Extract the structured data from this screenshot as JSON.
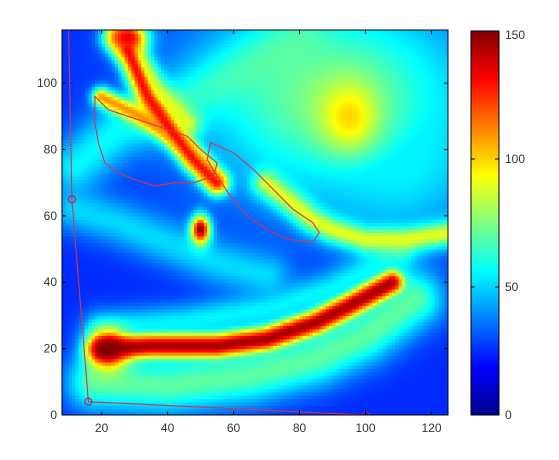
{
  "chart_data": {
    "type": "heatmap",
    "x_ticks": [
      20,
      40,
      60,
      80,
      100,
      120
    ],
    "y_ticks": [
      0,
      20,
      40,
      60,
      80,
      100
    ],
    "xlim": [
      8,
      125
    ],
    "ylim": [
      0,
      116
    ],
    "colorbar": {
      "min": 0,
      "max": 150,
      "ticks": [
        0,
        50,
        100,
        150
      ],
      "colormap": "jet"
    },
    "background_level": 25,
    "features": [
      {
        "kind": "band",
        "points": [
          [
            20,
            20
          ],
          [
            35,
            21
          ],
          [
            55,
            21
          ],
          [
            70,
            23
          ],
          [
            85,
            28
          ],
          [
            95,
            33
          ],
          [
            108,
            40
          ]
        ],
        "level": 145,
        "width": 3
      },
      {
        "kind": "band",
        "points": [
          [
            18,
            10
          ],
          [
            40,
            9
          ],
          [
            65,
            12
          ],
          [
            85,
            17
          ],
          [
            100,
            24
          ],
          [
            115,
            35
          ]
        ],
        "level": 70,
        "width": 6
      },
      {
        "kind": "band",
        "points": [
          [
            20,
            26
          ],
          [
            45,
            28
          ],
          [
            70,
            32
          ],
          [
            90,
            38
          ],
          [
            110,
            48
          ]
        ],
        "level": 55,
        "width": 4
      },
      {
        "kind": "band",
        "points": [
          [
            12,
            75
          ],
          [
            25,
            86
          ],
          [
            40,
            92
          ],
          [
            55,
            100
          ],
          [
            70,
            108
          ],
          [
            80,
            114
          ]
        ],
        "level": 55,
        "width": 6
      },
      {
        "kind": "band",
        "points": [
          [
            28,
            110
          ],
          [
            34,
            96
          ],
          [
            41,
            86
          ],
          [
            48,
            77
          ],
          [
            55,
            70
          ]
        ],
        "level": 130,
        "width": 2.5
      },
      {
        "kind": "band",
        "points": [
          [
            20,
            96
          ],
          [
            30,
            91
          ],
          [
            42,
            84
          ],
          [
            50,
            76
          ],
          [
            55,
            71
          ]
        ],
        "level": 110,
        "width": 2
      },
      {
        "kind": "band",
        "points": [
          [
            25,
            114
          ],
          [
            30,
            108
          ],
          [
            36,
            98
          ],
          [
            46,
            88
          ]
        ],
        "level": 90,
        "width": 3
      },
      {
        "kind": "band",
        "points": [
          [
            70,
            70
          ],
          [
            78,
            64
          ],
          [
            84,
            59
          ],
          [
            90,
            56
          ],
          [
            100,
            53
          ],
          [
            112,
            53
          ],
          [
            125,
            55
          ]
        ],
        "level": 90,
        "width": 3
      },
      {
        "kind": "band",
        "points": [
          [
            12,
            62
          ],
          [
            25,
            58
          ],
          [
            40,
            52
          ],
          [
            55,
            46
          ],
          [
            70,
            42
          ]
        ],
        "level": 50,
        "width": 5
      },
      {
        "kind": "blob",
        "center": [
          90,
          96
        ],
        "radius": [
          30,
          22
        ],
        "level": 75
      },
      {
        "kind": "blob",
        "center": [
          95,
          90
        ],
        "radius": [
          6,
          7
        ],
        "level": 100
      },
      {
        "kind": "blob",
        "center": [
          50,
          56
        ],
        "radius": [
          2,
          3
        ],
        "level": 150
      },
      {
        "kind": "blob",
        "center": [
          110,
          78
        ],
        "radius": [
          16,
          16
        ],
        "level": 55
      },
      {
        "kind": "blob",
        "center": [
          22,
          20
        ],
        "radius": [
          4,
          4
        ],
        "level": 150
      },
      {
        "kind": "blob",
        "center": [
          28,
          114
        ],
        "radius": [
          4,
          3
        ],
        "level": 135
      }
    ],
    "outlines": [
      {
        "name": "",
        "closed": true,
        "points": [
          [
            18,
            96
          ],
          [
            22,
            92
          ],
          [
            28,
            90
          ],
          [
            34,
            88
          ],
          [
            40,
            86
          ],
          [
            46,
            84
          ],
          [
            50,
            80
          ],
          [
            55,
            76
          ],
          [
            54,
            72
          ],
          [
            48,
            70
          ],
          [
            42,
            70
          ],
          [
            36,
            69
          ],
          [
            30,
            71
          ],
          [
            25,
            73
          ],
          [
            21,
            76
          ],
          [
            19,
            82
          ],
          [
            18,
            88
          ]
        ]
      },
      {
        "name": "",
        "closed": true,
        "points": [
          [
            53,
            82
          ],
          [
            60,
            79
          ],
          [
            66,
            74
          ],
          [
            72,
            68
          ],
          [
            78,
            62
          ],
          [
            84,
            58
          ],
          [
            86,
            55
          ],
          [
            84,
            52
          ],
          [
            76,
            53
          ],
          [
            70,
            56
          ],
          [
            64,
            60
          ],
          [
            59,
            66
          ],
          [
            55,
            72
          ],
          [
            52,
            77
          ]
        ]
      },
      {
        "name": "",
        "closed": false,
        "points": [
          [
            10,
            116
          ],
          [
            11,
            65
          ],
          [
            16,
            4
          ],
          [
            100,
            0
          ]
        ]
      }
    ],
    "markers": [
      [
        11,
        65
      ],
      [
        16,
        4
      ],
      [
        100,
        0
      ]
    ]
  }
}
